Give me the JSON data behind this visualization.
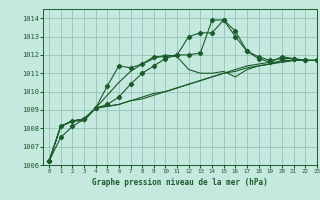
{
  "title": "Graphe pression niveau de la mer (hPa)",
  "xlim": [
    -0.5,
    23
  ],
  "ylim": [
    1006,
    1014.5
  ],
  "yticks": [
    1006,
    1007,
    1008,
    1009,
    1010,
    1011,
    1012,
    1013,
    1014
  ],
  "xticks": [
    0,
    1,
    2,
    3,
    4,
    5,
    6,
    7,
    8,
    9,
    10,
    11,
    12,
    13,
    14,
    15,
    16,
    17,
    18,
    19,
    20,
    21,
    22,
    23
  ],
  "bg_color": "#c5e8df",
  "grid_color": "#88bfb0",
  "line_color": "#1a5c2a",
  "series": [
    [
      1006.2,
      1007.5,
      1008.1,
      1008.5,
      1009.1,
      1010.3,
      1011.4,
      1011.3,
      1011.5,
      1011.9,
      1011.9,
      1012.0,
      1012.0,
      1012.1,
      1013.9,
      1013.9,
      1013.3,
      1012.2,
      1011.8,
      1011.6,
      1011.9,
      1011.8,
      1011.7,
      1011.7
    ],
    [
      1006.2,
      1008.1,
      1008.4,
      1008.5,
      1009.1,
      1009.8,
      1010.5,
      1011.1,
      1011.5,
      1011.8,
      1012.0,
      1011.9,
      1011.2,
      1011.0,
      1011.0,
      1011.1,
      1010.8,
      1011.2,
      1011.4,
      1011.5,
      1011.7,
      1011.7,
      1011.7,
      1011.7
    ],
    [
      1006.2,
      1008.1,
      1008.4,
      1008.5,
      1009.1,
      1009.2,
      1009.3,
      1009.5,
      1009.7,
      1009.9,
      1010.0,
      1010.2,
      1010.4,
      1010.6,
      1010.8,
      1011.0,
      1011.2,
      1011.4,
      1011.5,
      1011.6,
      1011.6,
      1011.7,
      1011.7,
      1011.7
    ],
    [
      1006.2,
      1008.1,
      1008.4,
      1008.4,
      1009.1,
      1009.2,
      1009.3,
      1009.5,
      1009.6,
      1009.8,
      1010.0,
      1010.2,
      1010.4,
      1010.6,
      1010.8,
      1011.0,
      1011.1,
      1011.3,
      1011.4,
      1011.5,
      1011.6,
      1011.7,
      1011.7,
      1011.7
    ],
    [
      1006.2,
      1008.1,
      1008.4,
      1008.5,
      1009.1,
      1009.3,
      1009.7,
      1010.4,
      1011.0,
      1011.4,
      1011.8,
      1012.0,
      1013.0,
      1013.2,
      1013.2,
      1013.9,
      1013.0,
      1012.2,
      1011.9,
      1011.7,
      1011.8,
      1011.8,
      1011.7,
      1011.7
    ]
  ],
  "marker_series": [
    0,
    4
  ],
  "marker": "D",
  "marker_size": 2.2,
  "lw": 0.8
}
